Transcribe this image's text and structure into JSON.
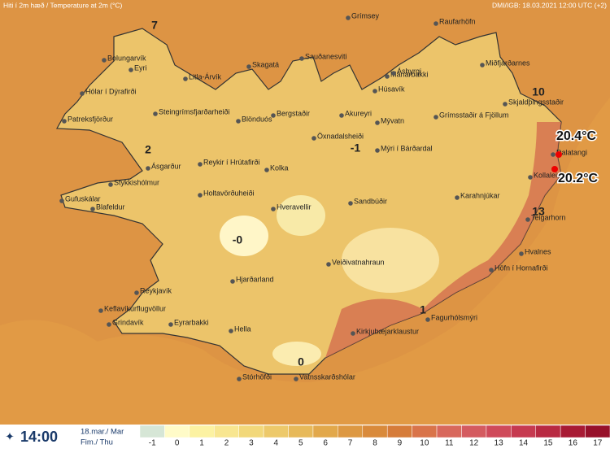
{
  "header": {
    "title": "Hiti í 2m hæð / Temperature at 2m (°C)",
    "source": "DMI/IGB: 18.03.2021 12:00 UTC (+2)"
  },
  "places": [
    "Grímsey",
    "Raufarhöfn",
    "Bolungarvík",
    "Eyri",
    "Litla-Árvík",
    "Skagatá",
    "Sauðanesviti",
    "Mánárbakki",
    "Miðfjarðarnes",
    "Ásbyrgi",
    "Húsavík",
    "Hólar í Dýrafirði",
    "Steingrímsfjarðarheiði",
    "Bergstaðir",
    "Akureyri",
    "Grímsstaðir á Fjöllum",
    "Skjaldþingsstaðir",
    "Patreksfjörður",
    "Blönduós",
    "Mývatn",
    "Öxnadalsheiði",
    "Mýri í Bárðardal",
    "Reykir í Hrútafirði",
    "Kolka",
    "Dalatangi",
    "Ásgarður",
    "Kollaleira",
    "Stykkishólmur",
    "Karahnjúkar",
    "Holtavörðuheiði",
    "Sandbúðir",
    "Gufuskálar",
    "Blafeldur",
    "Hveravellir",
    "Teigarhorn",
    "Hvalnes",
    "Veiðivatnahraun",
    "Höfn í Hornafirði",
    "Hjarðarland",
    "Reykjavík",
    "Keflavíkurflugvöllur",
    "Fagurhólsmýri",
    "Eyrarbakki",
    "Grindavík",
    "Hella",
    "Kirkjubæjarklaustur",
    "Stórhöfði",
    "Vatnsskarðshólar"
  ],
  "contour_labels": [
    "7",
    "10",
    "2",
    "-1",
    "-0",
    "0",
    "13",
    "1"
  ],
  "highlights": [
    "20.4°C",
    "20.2°C"
  ],
  "legend": {
    "time": "14:00",
    "date": "18.mar./ Mar",
    "day": "Fim./ Thu",
    "ticks": [
      -1,
      0,
      1,
      2,
      3,
      4,
      5,
      6,
      7,
      8,
      9,
      10,
      11,
      12,
      13,
      14,
      15,
      16,
      17
    ],
    "colors": [
      "#d6e6d6",
      "#fffbc8",
      "#fcf2a2",
      "#f8e690",
      "#f2d87a",
      "#edc96a",
      "#e7b95a",
      "#e2a84b",
      "#dd9842",
      "#d98a3b",
      "#d67c3a",
      "#d9744a",
      "#d8685c",
      "#d45b60",
      "#cf4a5a",
      "#c63a50",
      "#b82a42",
      "#a81a34",
      "#97102a"
    ]
  }
}
